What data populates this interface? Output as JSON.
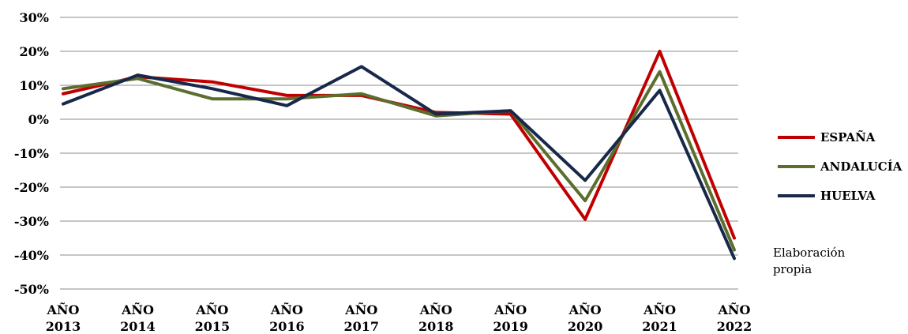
{
  "chart_data": {
    "type": "line",
    "categories": [
      [
        "AÑO",
        "2013"
      ],
      [
        "AÑO",
        "2014"
      ],
      [
        "AÑO",
        "2015"
      ],
      [
        "AÑO",
        "2016"
      ],
      [
        "AÑO",
        "2017"
      ],
      [
        "AÑO",
        "2018"
      ],
      [
        "AÑO",
        "2019"
      ],
      [
        "AÑO",
        "2020"
      ],
      [
        "AÑO",
        "2021"
      ],
      [
        "AÑO",
        "2022"
      ]
    ],
    "y_ticks": [
      "30%",
      "20%",
      "10%",
      "0%",
      "-10%",
      "-20%",
      "-30%",
      "-40%",
      "-50%"
    ],
    "ylim": [
      -50,
      30
    ],
    "y_unit": "%",
    "grid": true,
    "legend_position": "right",
    "series": [
      {
        "name": "ESPAÑA",
        "color": "#c00000",
        "values": [
          7.5,
          12.5,
          11,
          7,
          7,
          2,
          1.5,
          -29.5,
          20,
          -35
        ]
      },
      {
        "name": "ANDALUCÍA",
        "color": "#5b6e2e",
        "values": [
          9,
          12,
          6,
          6,
          7.5,
          1,
          2.5,
          -24,
          14,
          -38.5
        ]
      },
      {
        "name": "HUELVA",
        "color": "#17284a",
        "values": [
          4.5,
          13,
          9,
          4,
          15.5,
          1.5,
          2.5,
          -18,
          8.5,
          -41
        ]
      }
    ],
    "annotation": [
      "Elaboración",
      "propia"
    ]
  }
}
